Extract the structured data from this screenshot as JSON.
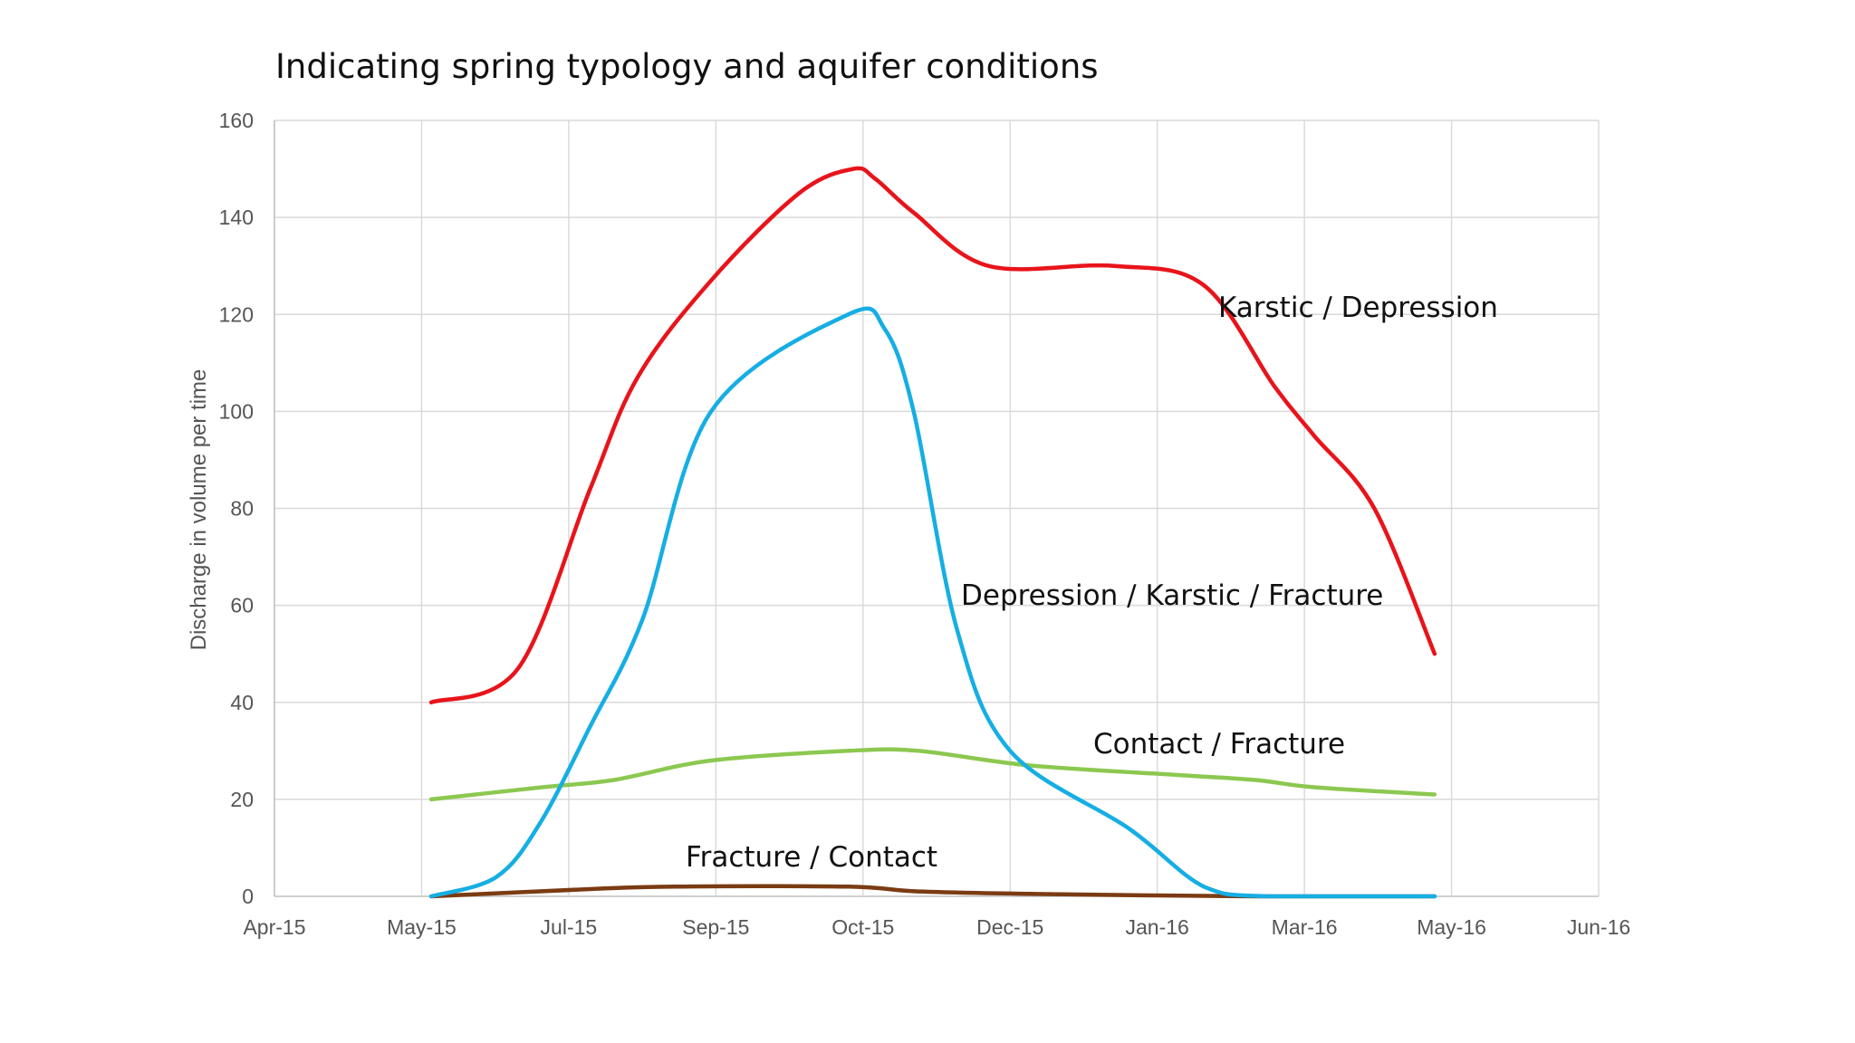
{
  "chart_data": {
    "type": "line",
    "title": "Indicating spring typology and aquifer conditions",
    "ylabel": "Discharge in volume per time",
    "xlabel": "",
    "x_scale": "date",
    "xlim": [
      "2015-04-01",
      "2016-06-01"
    ],
    "ylim": [
      0,
      160
    ],
    "yticks": [
      "0",
      "20",
      "40",
      "60",
      "80",
      "100",
      "120",
      "140",
      "160"
    ],
    "xticks": [
      {
        "date": "2015-04-01",
        "label": "Apr-15"
      },
      {
        "date": "2015-05-01",
        "label": "May-15"
      },
      {
        "date": "2015-07-01",
        "label": "Jul-15"
      },
      {
        "date": "2015-09-01",
        "label": "Sep-15"
      },
      {
        "date": "2015-10-01",
        "label": "Oct-15"
      },
      {
        "date": "2015-12-01",
        "label": "Dec-15"
      },
      {
        "date": "2016-01-01",
        "label": "Jan-16"
      },
      {
        "date": "2016-03-01",
        "label": "Mar-16"
      },
      {
        "date": "2016-05-01",
        "label": "May-16"
      },
      {
        "date": "2016-06-01",
        "label": "Jun-16"
      }
    ],
    "grid": true,
    "series": [
      {
        "name": "Karstic / Depression",
        "color": "#e8141b",
        "points": [
          [
            "2015-05-05",
            40
          ],
          [
            "2015-06-10",
            47
          ],
          [
            "2015-07-10",
            84
          ],
          [
            "2015-07-30",
            107
          ],
          [
            "2015-08-30",
            127
          ],
          [
            "2015-09-18",
            145
          ],
          [
            "2015-09-29",
            150
          ],
          [
            "2015-10-06",
            148
          ],
          [
            "2015-10-22",
            141
          ],
          [
            "2015-11-22",
            130
          ],
          [
            "2015-12-23",
            130
          ],
          [
            "2016-01-20",
            126
          ],
          [
            "2016-02-18",
            105
          ],
          [
            "2016-03-05",
            95
          ],
          [
            "2016-03-30",
            80
          ],
          [
            "2016-04-24",
            50
          ]
        ]
      },
      {
        "name": "Depression / Karstic / Fracture",
        "color": "#16aee3",
        "points": [
          [
            "2015-05-05",
            0
          ],
          [
            "2015-06-01",
            4
          ],
          [
            "2015-06-19",
            15
          ],
          [
            "2015-07-10",
            35
          ],
          [
            "2015-08-01",
            57
          ],
          [
            "2015-08-30",
            100
          ],
          [
            "2015-09-28",
            120
          ],
          [
            "2015-10-10",
            117
          ],
          [
            "2015-10-22",
            100
          ],
          [
            "2015-11-09",
            55
          ],
          [
            "2015-12-01",
            30
          ],
          [
            "2015-12-26",
            14
          ],
          [
            "2016-01-20",
            2
          ],
          [
            "2016-02-15",
            0
          ],
          [
            "2016-04-24",
            0
          ]
        ]
      },
      {
        "name": "Contact / Fracture",
        "color": "#8cc850",
        "points": [
          [
            "2015-05-05",
            20
          ],
          [
            "2015-06-20",
            22.5
          ],
          [
            "2015-07-20",
            24
          ],
          [
            "2015-08-30",
            28
          ],
          [
            "2015-09-28",
            30
          ],
          [
            "2015-10-24",
            30
          ],
          [
            "2015-12-05",
            27
          ],
          [
            "2016-01-10",
            25
          ],
          [
            "2016-02-10",
            24
          ],
          [
            "2016-03-05",
            22.5
          ],
          [
            "2016-04-24",
            21
          ]
        ]
      },
      {
        "name": "Fracture / Contact",
        "color": "#7b3b12",
        "points": [
          [
            "2015-05-05",
            0
          ],
          [
            "2015-07-10",
            1.5
          ],
          [
            "2015-08-15",
            2
          ],
          [
            "2015-09-28",
            2
          ],
          [
            "2015-10-24",
            1
          ],
          [
            "2015-12-05",
            0.5
          ],
          [
            "2016-02-10",
            0
          ],
          [
            "2016-04-24",
            0
          ]
        ]
      }
    ]
  }
}
